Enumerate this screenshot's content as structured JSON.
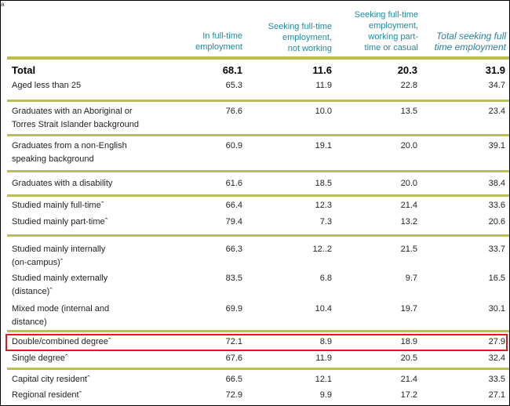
{
  "corner_mark": "a",
  "headers": [
    [
      "In full-time",
      "employment"
    ],
    [
      "Seeking  full-time",
      "employment,",
      "not  working"
    ],
    [
      "Seeking    full-time",
      "employment,",
      "working   part-",
      "time  or casual"
    ],
    [
      "Total seeking full",
      "time employment"
    ]
  ],
  "rows": [
    {
      "label": [
        "Total"
      ],
      "values": [
        "68.1",
        "11.6",
        "20.3",
        "31.9"
      ]
    },
    {
      "label": [
        "Aged  less  than  25"
      ],
      "values": [
        "65.3",
        "11.9",
        "22.8",
        "34.7"
      ]
    },
    {
      "label": [
        "Graduates  with  an Aboriginal  or",
        "Torres Strait  Islander background"
      ],
      "values": [
        "76.6",
        "10.0",
        "13.5",
        "23.4"
      ]
    },
    {
      "label": [
        "Graduates  from  a non-English",
        "speaking  background"
      ],
      "values": [
        "60.9",
        "19.1",
        "20.0",
        "39.1"
      ]
    },
    {
      "label": [
        "Graduates  with  a disability"
      ],
      "values": [
        "61.6",
        "18.5",
        "20.0",
        "38.4"
      ]
    },
    {
      "label": [
        "Studied  mainly  full-timeˆ"
      ],
      "values": [
        "66.4",
        "12.3",
        "21.4",
        "33.6"
      ]
    },
    {
      "label": [
        "Studied  mainly  part-timeˆ"
      ],
      "values": [
        "79.4",
        "7.3",
        "13.2",
        "20.6"
      ]
    },
    {
      "label": [
        "Studied  mainly  internally",
        "(on-campus)ˆ"
      ],
      "values": [
        "66.3",
        "12..2",
        "21.5",
        "33.7"
      ]
    },
    {
      "label": [
        "Studied  mainly  externally",
        "(distance)ˆ"
      ],
      "values": [
        "83.5",
        "6.8",
        "9.7",
        "16.5"
      ]
    },
    {
      "label": [
        "Mixed mode (internal and",
        "distance)"
      ],
      "values": [
        "69.9",
        "10.4",
        "19.7",
        "30.1"
      ]
    },
    {
      "label": [
        "Double/combined   degreeˆ"
      ],
      "values": [
        "72.1",
        "8.9",
        "18.9",
        "27.9"
      ]
    },
    {
      "label": [
        "Single degreeˆ"
      ],
      "values": [
        "67.6",
        "11.9",
        "20.5",
        "32.4"
      ]
    },
    {
      "label": [
        "Capital  city residentˆ"
      ],
      "values": [
        "66.5",
        "12.1",
        "21.4",
        "33.5"
      ]
    },
    {
      "label": [
        "Regional  residentˆ"
      ],
      "values": [
        "72.9",
        "9.9",
        "17.2",
        "27.1"
      ]
    }
  ]
}
